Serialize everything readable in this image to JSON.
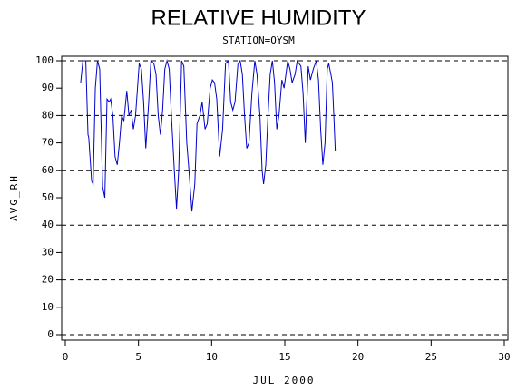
{
  "chart_data": {
    "type": "line",
    "title": "RELATIVE HUMIDITY",
    "subtitle": "STATION=OYSM",
    "xlabel": "JUL 2000",
    "ylabel": "AVG_RH",
    "color": "#0000cc",
    "grid": true,
    "xlim": [
      0,
      30
    ],
    "xticks": [
      0,
      5,
      10,
      15,
      20,
      25,
      30
    ],
    "ylim": [
      0,
      100
    ],
    "yticks": [
      0,
      10,
      20,
      30,
      40,
      50,
      60,
      70,
      80,
      90,
      100
    ],
    "x": [
      1.05,
      1.2,
      1.4,
      1.55,
      1.6,
      1.8,
      1.9,
      2.05,
      2.2,
      2.35,
      2.55,
      2.7,
      2.85,
      3.0,
      3.1,
      3.25,
      3.4,
      3.55,
      3.7,
      3.85,
      4.0,
      4.2,
      4.35,
      4.5,
      4.65,
      4.8,
      5.05,
      5.2,
      5.35,
      5.5,
      5.7,
      5.85,
      6.05,
      6.2,
      6.35,
      6.5,
      6.65,
      6.8,
      6.95,
      7.1,
      7.25,
      7.45,
      7.6,
      7.75,
      7.95,
      8.1,
      8.3,
      8.45,
      8.65,
      8.85,
      9.0,
      9.2,
      9.35,
      9.55,
      9.7,
      9.9,
      10.05,
      10.2,
      10.35,
      10.55,
      10.75,
      10.95,
      11.15,
      11.3,
      11.45,
      11.6,
      11.8,
      11.95,
      12.1,
      12.25,
      12.4,
      12.55,
      12.75,
      12.95,
      13.1,
      13.3,
      13.45,
      13.55,
      13.7,
      13.85,
      14.0,
      14.15,
      14.3,
      14.45,
      14.6,
      14.8,
      14.95,
      15.2,
      15.35,
      15.5,
      15.7,
      15.85,
      16.1,
      16.25,
      16.4,
      16.6,
      16.75,
      16.95,
      17.15,
      17.3,
      17.45,
      17.6,
      17.75,
      17.9,
      18.0,
      18.15,
      18.25,
      18.35,
      18.45
    ],
    "values": [
      92,
      100,
      100,
      73,
      72,
      56,
      55,
      90,
      100,
      97,
      54,
      50,
      86,
      85,
      86,
      80,
      65,
      62,
      70,
      80,
      78,
      89,
      80,
      82,
      75,
      80,
      99,
      97,
      85,
      68,
      85,
      100,
      99,
      95,
      80,
      73,
      82,
      97,
      100,
      97,
      80,
      60,
      46,
      60,
      100,
      98,
      70,
      60,
      45,
      55,
      77,
      80,
      85,
      75,
      77,
      90,
      93,
      92,
      86,
      65,
      75,
      99,
      100,
      85,
      82,
      85,
      99,
      100,
      95,
      80,
      68,
      70,
      88,
      100,
      95,
      80,
      60,
      55,
      62,
      80,
      95,
      100,
      92,
      75,
      80,
      93,
      90,
      100,
      97,
      92,
      95,
      100,
      98,
      88,
      70,
      98,
      93,
      97,
      100,
      93,
      75,
      62,
      70,
      97,
      99,
      95,
      92,
      80,
      67
    ]
  }
}
